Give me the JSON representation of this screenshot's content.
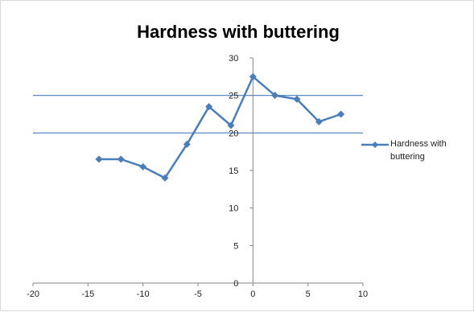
{
  "chart_data": {
    "type": "line",
    "title": "Hardness with buttering",
    "xlabel": "",
    "ylabel": "",
    "xlim": [
      -20,
      10
    ],
    "ylim": [
      0,
      30
    ],
    "x_ticks": [
      "-20",
      "-15",
      "-10",
      "-5",
      "0",
      "5",
      "10"
    ],
    "y_ticks": [
      "0",
      "5",
      "10",
      "15",
      "20",
      "25",
      "30"
    ],
    "grid": false,
    "reference_lines_y": [
      20,
      25
    ],
    "legend_position": "right",
    "series": [
      {
        "name": "Hardness with buttering",
        "color": "#4a7ebb",
        "x": [
          -14,
          -12,
          -10,
          -8,
          -6,
          -4,
          -2,
          0,
          2,
          4,
          6,
          8
        ],
        "y": [
          16.5,
          16.5,
          15.5,
          14,
          18.5,
          23.5,
          21,
          27.5,
          25,
          24.5,
          21.5,
          22.5
        ]
      }
    ]
  }
}
